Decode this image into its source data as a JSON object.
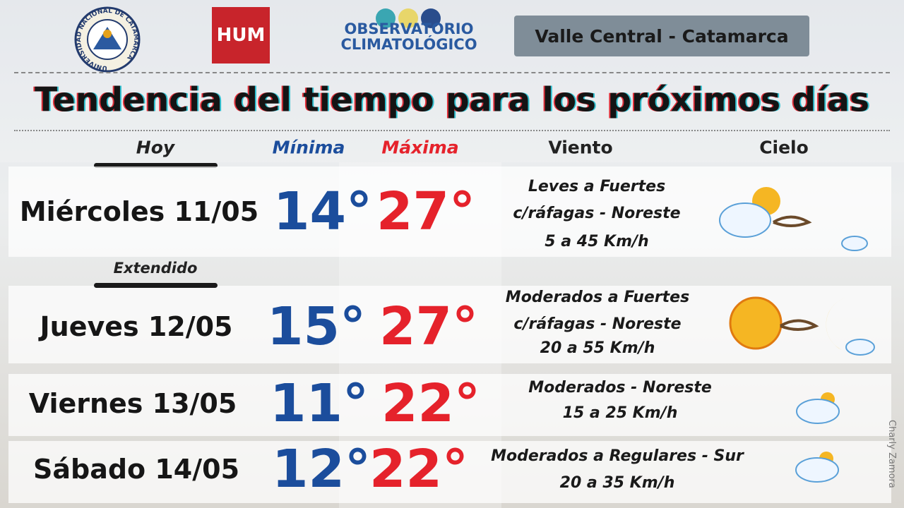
{
  "header": {
    "university": "UNIVERSIDAD NACIONAL DE CATAMARCA",
    "faculty": "HUM",
    "observatory": [
      "OBSERVATORIO",
      "CLIMATOLÓGICO"
    ],
    "region": "Valle Central - Catamarca"
  },
  "title": "Tendencia del tiempo para los próximos días",
  "columns": {
    "today": "Hoy",
    "min": "Mínima",
    "max": "Máxima",
    "wind": "Viento",
    "sky": "Cielo"
  },
  "extended_label": "Extendido",
  "rows": [
    {
      "day": "Miércoles 11/05",
      "min": "14°",
      "max": "27°",
      "wind": [
        "Leves a Fuertes",
        "c/ráfagas - Noreste",
        "5 a 45 Km/h"
      ]
    },
    {
      "day": "Jueves 12/05",
      "min": "15°",
      "max": "27°",
      "wind": [
        "Moderados a Fuertes",
        "c/ráfagas - Noreste",
        "20 a 55 Km/h"
      ]
    },
    {
      "day": "Viernes 13/05",
      "min": "11°",
      "max": "22°",
      "wind": [
        "Moderados - Noreste",
        "15 a 25 Km/h"
      ]
    },
    {
      "day": "Sábado 14/05",
      "min": "12°",
      "max": "22°",
      "wind": [
        "Moderados a Regulares - Sur",
        "20 a 35 Km/h"
      ]
    }
  ],
  "credit": "Charly Zamora"
}
